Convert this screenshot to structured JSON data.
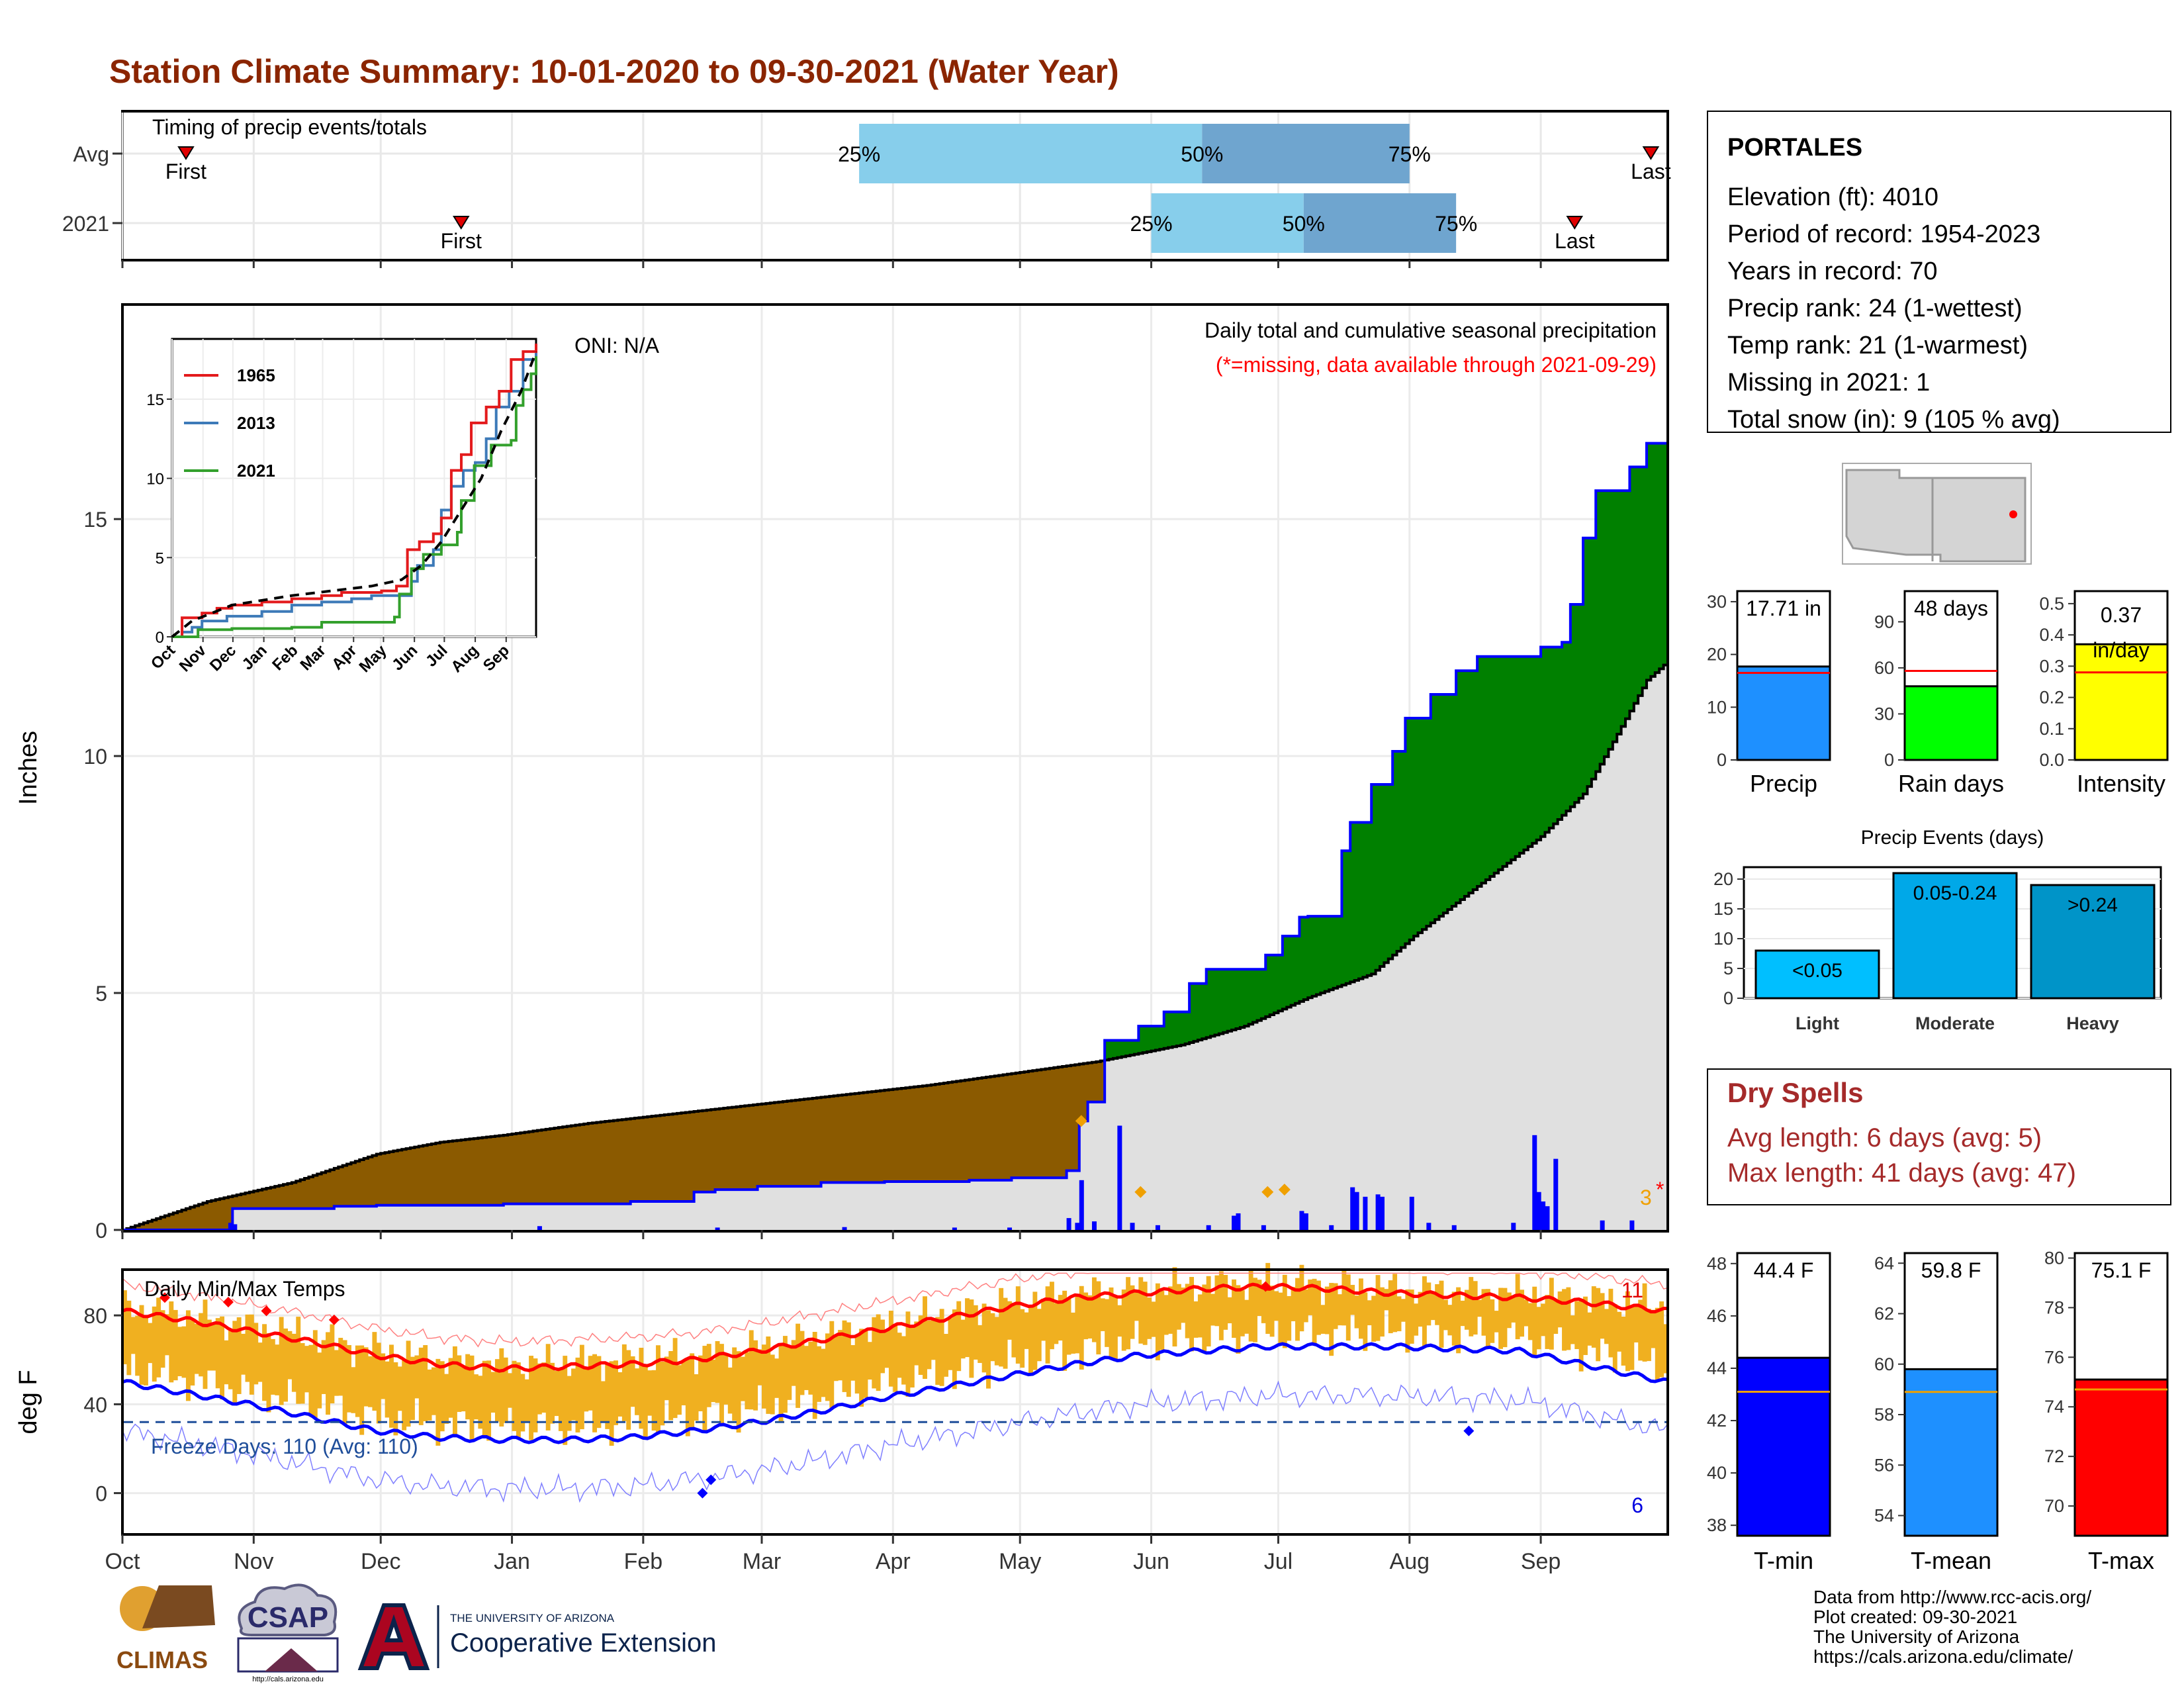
{
  "title": "Station Climate Summary: 10-01-2020 to 09-30-2021 (Water Year)",
  "months": [
    "Oct",
    "Nov",
    "Dec",
    "Jan",
    "Feb",
    "Mar",
    "Apr",
    "May",
    "Jun",
    "Jul",
    "Aug",
    "Sep"
  ],
  "timing": {
    "label": "Timing of precip events/totals",
    "rows": [
      {
        "name": "Avg",
        "first_day": 15,
        "p25": 174,
        "p50": 255,
        "p75": 304,
        "last_day": 361,
        "first_label": "First",
        "last_label": "Last",
        "p25_label": "25%",
        "p50_label": "50%",
        "p75_label": "75%"
      },
      {
        "name": "2021",
        "first_day": 80,
        "p25": 243,
        "p50": 279,
        "p75": 315,
        "last_day": 343,
        "first_label": "First",
        "last_label": "Last",
        "p25_label": "25%",
        "p50_label": "50%",
        "p75_label": "75%"
      }
    ]
  },
  "precip": {
    "ylabel": "Inches",
    "oni": "ONI: N/A",
    "caption": "Daily total and cumulative seasonal precipitation",
    "missing_note": "(*=missing, data available through 2021-09-29)",
    "missing_count": "3",
    "missing_mark": "*",
    "yticks": [
      0,
      5,
      10,
      15
    ],
    "ylim": [
      0,
      19.5
    ],
    "avg_cumulative": [
      [
        0,
        0
      ],
      [
        10,
        0.3
      ],
      [
        20,
        0.6
      ],
      [
        30,
        0.8
      ],
      [
        40,
        1.0
      ],
      [
        50,
        1.3
      ],
      [
        60,
        1.6
      ],
      [
        75,
        1.85
      ],
      [
        90,
        2.0
      ],
      [
        110,
        2.25
      ],
      [
        130,
        2.45
      ],
      [
        150,
        2.65
      ],
      [
        170,
        2.85
      ],
      [
        190,
        3.05
      ],
      [
        210,
        3.3
      ],
      [
        230,
        3.55
      ],
      [
        250,
        3.9
      ],
      [
        265,
        4.3
      ],
      [
        280,
        4.9
      ],
      [
        295,
        5.4
      ],
      [
        305,
        6.2
      ],
      [
        315,
        6.9
      ],
      [
        325,
        7.6
      ],
      [
        335,
        8.3
      ],
      [
        345,
        9.2
      ],
      [
        352,
        10.3
      ],
      [
        360,
        11.6
      ],
      [
        365,
        12.0
      ]
    ],
    "y2021_cumulative": [
      [
        0,
        0
      ],
      [
        24,
        0
      ],
      [
        26,
        0.45
      ],
      [
        30,
        0.45
      ],
      [
        50,
        0.5
      ],
      [
        60,
        0.52
      ],
      [
        90,
        0.55
      ],
      [
        120,
        0.6
      ],
      [
        135,
        0.8
      ],
      [
        140,
        0.85
      ],
      [
        150,
        0.92
      ],
      [
        165,
        1.0
      ],
      [
        180,
        1.02
      ],
      [
        200,
        1.05
      ],
      [
        210,
        1.1
      ],
      [
        223,
        1.25
      ],
      [
        226,
        2.3
      ],
      [
        228,
        2.7
      ],
      [
        232,
        4.0
      ],
      [
        240,
        4.3
      ],
      [
        246,
        4.6
      ],
      [
        252,
        5.2
      ],
      [
        256,
        5.5
      ],
      [
        270,
        5.8
      ],
      [
        274,
        6.2
      ],
      [
        278,
        6.6
      ],
      [
        280,
        6.62
      ],
      [
        286,
        6.62
      ],
      [
        288,
        8.0
      ],
      [
        290,
        8.6
      ],
      [
        295,
        9.4
      ],
      [
        300,
        10.1
      ],
      [
        303,
        10.8
      ],
      [
        309,
        11.3
      ],
      [
        315,
        11.8
      ],
      [
        320,
        12.1
      ],
      [
        335,
        12.3
      ],
      [
        340,
        12.4
      ],
      [
        342,
        13.2
      ],
      [
        345,
        14.6
      ],
      [
        348,
        15.6
      ],
      [
        352,
        15.6
      ],
      [
        356,
        16.1
      ],
      [
        360,
        16.6
      ],
      [
        365,
        17.71
      ]
    ],
    "daily_bars": [
      [
        25,
        0.15
      ],
      [
        26,
        0.12
      ],
      [
        98,
        0.08
      ],
      [
        140,
        0.05
      ],
      [
        170,
        0.06
      ],
      [
        196,
        0.05
      ],
      [
        209,
        0.05
      ],
      [
        223,
        0.25
      ],
      [
        225,
        0.15
      ],
      [
        226,
        1.05
      ],
      [
        229,
        0.18
      ],
      [
        235,
        2.2
      ],
      [
        238,
        0.15
      ],
      [
        244,
        0.1
      ],
      [
        256,
        0.1
      ],
      [
        262,
        0.3
      ],
      [
        263,
        0.35
      ],
      [
        269,
        0.1
      ],
      [
        278,
        0.4
      ],
      [
        279,
        0.35
      ],
      [
        285,
        0.1
      ],
      [
        290,
        0.9
      ],
      [
        291,
        0.8
      ],
      [
        293,
        0.7
      ],
      [
        296,
        0.75
      ],
      [
        297,
        0.7
      ],
      [
        304,
        0.7
      ],
      [
        308,
        0.15
      ],
      [
        314,
        0.1
      ],
      [
        328,
        0.15
      ],
      [
        333,
        2.0
      ],
      [
        334,
        0.8
      ],
      [
        335,
        0.6
      ],
      [
        336,
        0.5
      ],
      [
        338,
        1.5
      ],
      [
        349,
        0.2
      ],
      [
        356,
        0.2
      ]
    ],
    "diamonds": [
      [
        226,
        2.3
      ],
      [
        240,
        0.8
      ],
      [
        270,
        0.8
      ],
      [
        274,
        0.85
      ]
    ]
  },
  "inset": {
    "yticks": [
      0,
      5,
      10,
      15
    ],
    "months": [
      "Oct",
      "Nov",
      "Dec",
      "Jan",
      "Feb",
      "Mar",
      "Apr",
      "May",
      "Jun",
      "Jul",
      "Aug",
      "Sep"
    ],
    "legend": [
      {
        "name": "1965",
        "color": "#e31a1c"
      },
      {
        "name": "2013",
        "color": "#3d7ab8"
      },
      {
        "name": "2021",
        "color": "#33a02c"
      }
    ],
    "series": {
      "1965": [
        [
          0,
          0
        ],
        [
          10,
          1.2
        ],
        [
          30,
          1.5
        ],
        [
          45,
          1.8
        ],
        [
          60,
          2.0
        ],
        [
          90,
          2.2
        ],
        [
          120,
          2.4
        ],
        [
          150,
          2.6
        ],
        [
          170,
          2.8
        ],
        [
          210,
          2.9
        ],
        [
          225,
          3.2
        ],
        [
          236,
          5.5
        ],
        [
          248,
          6.0
        ],
        [
          262,
          6.5
        ],
        [
          270,
          7.5
        ],
        [
          280,
          10.5
        ],
        [
          290,
          11.5
        ],
        [
          300,
          13.5
        ],
        [
          315,
          14.5
        ],
        [
          328,
          15.5
        ],
        [
          340,
          17.5
        ],
        [
          352,
          18.0
        ],
        [
          365,
          18.5
        ]
      ],
      "2013": [
        [
          0,
          0
        ],
        [
          10,
          0.3
        ],
        [
          20,
          0.6
        ],
        [
          30,
          1.0
        ],
        [
          55,
          1.3
        ],
        [
          90,
          1.6
        ],
        [
          120,
          2.0
        ],
        [
          150,
          2.2
        ],
        [
          180,
          2.4
        ],
        [
          200,
          2.6
        ],
        [
          240,
          3.5
        ],
        [
          246,
          4.5
        ],
        [
          262,
          5.5
        ],
        [
          270,
          8.0
        ],
        [
          280,
          9.5
        ],
        [
          292,
          10.5
        ],
        [
          304,
          11.0
        ],
        [
          315,
          12.5
        ],
        [
          325,
          14.5
        ],
        [
          338,
          15.5
        ],
        [
          352,
          17.5
        ],
        [
          365,
          18.5
        ]
      ],
      "2021": [
        [
          0,
          0
        ],
        [
          24,
          0
        ],
        [
          26,
          0.45
        ],
        [
          60,
          0.52
        ],
        [
          120,
          0.6
        ],
        [
          150,
          0.92
        ],
        [
          223,
          1.25
        ],
        [
          228,
          2.7
        ],
        [
          240,
          4.3
        ],
        [
          252,
          5.2
        ],
        [
          270,
          5.8
        ],
        [
          286,
          6.6
        ],
        [
          290,
          8.6
        ],
        [
          303,
          10.8
        ],
        [
          320,
          12.1
        ],
        [
          340,
          12.4
        ],
        [
          345,
          14.6
        ],
        [
          352,
          15.6
        ],
        [
          360,
          16.6
        ],
        [
          365,
          17.71
        ]
      ],
      "avg": [
        [
          0,
          0
        ],
        [
          20,
          1.0
        ],
        [
          40,
          1.5
        ],
        [
          60,
          2.0
        ],
        [
          90,
          2.3
        ],
        [
          120,
          2.6
        ],
        [
          160,
          2.9
        ],
        [
          200,
          3.2
        ],
        [
          230,
          3.6
        ],
        [
          250,
          4.5
        ],
        [
          270,
          6.0
        ],
        [
          290,
          8.0
        ],
        [
          310,
          10.0
        ],
        [
          330,
          13.0
        ],
        [
          350,
          15.5
        ],
        [
          365,
          18.0
        ]
      ]
    }
  },
  "temps": {
    "ylabel": "deg F",
    "label": "Daily Min/Max Temps",
    "freeze": "Freeze Days: 110 (Avg: 110)",
    "record_high_count": "11",
    "record_low_count": "6",
    "yticks": [
      0,
      40,
      80
    ],
    "ylim": [
      -18,
      100
    ],
    "avg_max": [
      [
        0,
        82
      ],
      [
        15,
        78
      ],
      [
        30,
        73
      ],
      [
        45,
        68
      ],
      [
        60,
        62
      ],
      [
        75,
        58
      ],
      [
        90,
        56
      ],
      [
        105,
        57
      ],
      [
        120,
        58
      ],
      [
        135,
        60
      ],
      [
        150,
        64
      ],
      [
        165,
        69
      ],
      [
        180,
        74
      ],
      [
        195,
        79
      ],
      [
        210,
        84
      ],
      [
        225,
        88
      ],
      [
        240,
        90
      ],
      [
        255,
        92
      ],
      [
        270,
        93
      ],
      [
        285,
        92
      ],
      [
        300,
        90
      ],
      [
        315,
        89
      ],
      [
        330,
        88
      ],
      [
        345,
        86
      ],
      [
        365,
        82
      ]
    ],
    "avg_min": [
      [
        0,
        50
      ],
      [
        15,
        45
      ],
      [
        30,
        40
      ],
      [
        45,
        34
      ],
      [
        60,
        28
      ],
      [
        75,
        25
      ],
      [
        90,
        24
      ],
      [
        105,
        24
      ],
      [
        120,
        25
      ],
      [
        135,
        28
      ],
      [
        150,
        32
      ],
      [
        165,
        37
      ],
      [
        180,
        43
      ],
      [
        195,
        48
      ],
      [
        210,
        53
      ],
      [
        225,
        58
      ],
      [
        240,
        62
      ],
      [
        255,
        64
      ],
      [
        270,
        66
      ],
      [
        285,
        66
      ],
      [
        300,
        66
      ],
      [
        315,
        65
      ],
      [
        330,
        64
      ],
      [
        345,
        58
      ],
      [
        365,
        50
      ]
    ],
    "freeze_line": 32
  },
  "station": {
    "name": "PORTALES",
    "lines": [
      "Elevation (ft): 4010",
      "Period of record: 1954-2023",
      "Years in record: 70",
      "Precip rank: 24 (1-wettest)",
      "Temp rank: 21 (1-warmest)",
      "Missing in 2021: 1",
      "Total snow (in): 9 (105 % avg)"
    ]
  },
  "gauges": [
    {
      "label": "Precip",
      "value_text": "17.71 in",
      "value": 17.71,
      "avg": 16.5,
      "max": 32,
      "ticks": [
        0,
        10,
        20,
        30
      ],
      "color": "#1e90ff"
    },
    {
      "label": "Rain days",
      "value_text": "48 days",
      "value": 48,
      "avg": 58,
      "max": 110,
      "ticks": [
        0,
        30,
        60,
        90
      ],
      "color": "#00ff00"
    },
    {
      "label": "Intensity",
      "value_text": "0.37 in/day",
      "value": 0.37,
      "avg": 0.28,
      "max": 0.54,
      "ticks": [
        0.0,
        0.1,
        0.2,
        0.3,
        0.4,
        0.5
      ],
      "color": "#ffff00"
    }
  ],
  "events": {
    "title": "Precip Events (days)",
    "yticks": [
      0,
      5,
      10,
      15,
      20
    ],
    "bars": [
      {
        "category": "Light",
        "value": 8,
        "label": "<0.05",
        "color": "#00bfff"
      },
      {
        "category": "Moderate",
        "value": 21,
        "label": "0.05-0.24",
        "color": "#00a8e8"
      },
      {
        "category": "Heavy",
        "value": 19,
        "label": ">0.24",
        "color": "#0094c8"
      }
    ]
  },
  "dry_spells": {
    "title": "Dry Spells",
    "avg_line": "Avg length: 6 days (avg: 5)",
    "max_line": "Max length: 41 days (avg: 47)"
  },
  "temp_gauges": [
    {
      "label": "T-min",
      "value_text": "44.4 F",
      "value": 44.4,
      "avg": 43.1,
      "min": 37.6,
      "max": 48.4,
      "ticks": [
        38,
        40,
        42,
        44,
        46,
        48
      ],
      "color": "#0000ff"
    },
    {
      "label": "T-mean",
      "value_text": "59.8 F",
      "value": 59.8,
      "avg": 58.9,
      "min": 53.2,
      "max": 64.4,
      "ticks": [
        54,
        56,
        58,
        60,
        62,
        64
      ],
      "color": "#1e90ff"
    },
    {
      "label": "T-max",
      "value_text": "75.1 F",
      "value": 75.1,
      "avg": 74.7,
      "min": 68.8,
      "max": 80.2,
      "ticks": [
        70,
        72,
        74,
        76,
        78,
        80
      ],
      "color": "#ff0000"
    }
  ],
  "credits": [
    "Data from http://www.rcc-acis.org/",
    "Plot created: 09-30-2021",
    "The University of Arizona",
    "https://cals.arizona.edu/climate/"
  ],
  "logos": {
    "climas": "CLIMAS",
    "csap": "CSAP",
    "csap_url": "http://cals.arizona.edu",
    "ua_small": "THE UNIVERSITY OF ARIZONA",
    "ua_big": "Cooperative Extension"
  },
  "colors": {
    "title": "#8b2500",
    "brown": "#8b5a00",
    "green": "#008000",
    "blue": "#0000ff",
    "grey": "#e0e0e0",
    "orange": "#f0b020",
    "red": "#ff0000",
    "dryred": "#a52a2a"
  }
}
